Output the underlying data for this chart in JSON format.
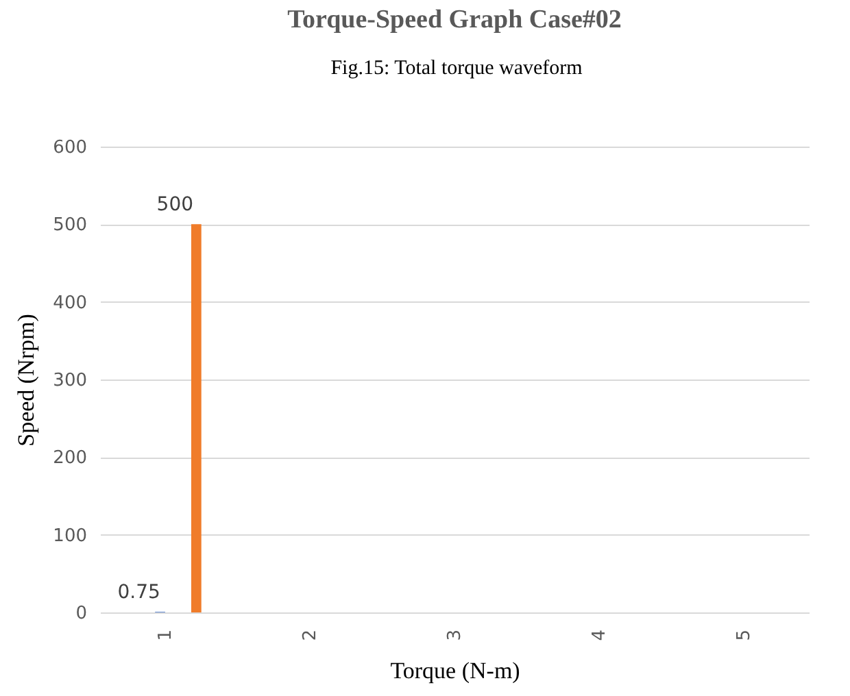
{
  "chart_data": {
    "type": "bar",
    "title": "Torque-Speed Graph Case#02",
    "xlabel": "Torque (N-m)",
    "ylabel": "Speed (Nrpm)",
    "annotations": [
      "Fig.15: Total torque waveform"
    ],
    "categories": [
      "1",
      "2",
      "3",
      "4",
      "5"
    ],
    "series": [
      {
        "color": "#4472c4",
        "values": [
          0.75,
          null,
          null,
          null,
          null
        ]
      },
      {
        "color": "#f07c2a",
        "values": [
          500,
          null,
          null,
          null,
          null
        ]
      }
    ],
    "ylim": [
      0,
      600
    ],
    "yticks": [
      0,
      100,
      200,
      300,
      400,
      500,
      600
    ],
    "grid": "y",
    "legend": false,
    "data_labels": true
  }
}
